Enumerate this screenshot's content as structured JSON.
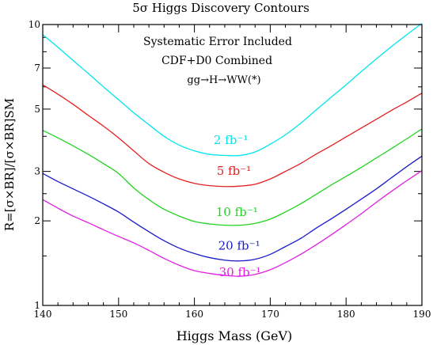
{
  "chart_data": {
    "type": "line",
    "title": "5σ Higgs Discovery Contours",
    "xlabel": "Higgs Mass (GeV)",
    "ylabel": "R=[σ×BR]/[σ×BR]SM",
    "yscale": "log",
    "xlim": [
      140,
      190
    ],
    "ylim": [
      1,
      10
    ],
    "xticks": [
      "140",
      "150",
      "160",
      "170",
      "180",
      "190"
    ],
    "yticks": [
      "1",
      "2",
      "3",
      "5",
      "7",
      "10"
    ],
    "grid": false,
    "annotations": [
      "Systematic Error Included",
      "CDF+D0 Combined",
      "gg→H→WW(*)"
    ],
    "x": [
      140,
      142,
      144,
      146,
      148,
      150,
      152,
      154,
      156,
      158,
      160,
      162,
      164,
      166,
      168,
      170,
      172,
      174,
      176,
      178,
      180,
      182,
      184,
      186,
      188,
      190
    ],
    "series": [
      {
        "name": "2 fb⁻¹",
        "color": "#00e5ee",
        "label_x": 164.8,
        "label_y": 3.75,
        "values": [
          9.2,
          8.3,
          7.45,
          6.7,
          6.0,
          5.4,
          4.85,
          4.4,
          4.0,
          3.72,
          3.55,
          3.45,
          3.42,
          3.42,
          3.52,
          3.75,
          4.05,
          4.45,
          4.95,
          5.5,
          6.1,
          6.8,
          7.55,
          8.35,
          9.2,
          10.1
        ]
      },
      {
        "name": "5 fb⁻¹",
        "color": "#e52020",
        "label_x": 165.2,
        "label_y": 2.92,
        "values": [
          6.1,
          5.65,
          5.2,
          4.75,
          4.35,
          3.95,
          3.55,
          3.2,
          2.98,
          2.82,
          2.72,
          2.67,
          2.65,
          2.66,
          2.7,
          2.82,
          3.0,
          3.2,
          3.45,
          3.7,
          3.98,
          4.28,
          4.6,
          4.95,
          5.3,
          5.7
        ]
      },
      {
        "name": "10 fb⁻¹",
        "color": "#22d422",
        "label_x": 165.6,
        "label_y": 2.08,
        "values": [
          4.2,
          3.95,
          3.7,
          3.45,
          3.2,
          2.95,
          2.62,
          2.38,
          2.2,
          2.08,
          1.99,
          1.95,
          1.93,
          1.93,
          1.96,
          2.03,
          2.15,
          2.3,
          2.48,
          2.68,
          2.88,
          3.1,
          3.35,
          3.62,
          3.92,
          4.25
        ]
      },
      {
        "name": "20 fb⁻¹",
        "color": "#1a1acc",
        "label_x": 165.9,
        "label_y": 1.58,
        "values": [
          2.95,
          2.76,
          2.6,
          2.45,
          2.3,
          2.15,
          1.98,
          1.83,
          1.7,
          1.6,
          1.53,
          1.48,
          1.45,
          1.44,
          1.46,
          1.52,
          1.62,
          1.73,
          1.88,
          2.03,
          2.2,
          2.39,
          2.6,
          2.85,
          3.12,
          3.4
        ]
      },
      {
        "name": "30 fb⁻¹",
        "color": "#e020e0",
        "label_x": 166.0,
        "label_y": 1.27,
        "values": [
          2.38,
          2.22,
          2.08,
          1.97,
          1.86,
          1.76,
          1.67,
          1.57,
          1.47,
          1.39,
          1.33,
          1.3,
          1.28,
          1.27,
          1.29,
          1.34,
          1.42,
          1.52,
          1.64,
          1.78,
          1.94,
          2.12,
          2.33,
          2.55,
          2.78,
          3.02
        ]
      }
    ]
  }
}
